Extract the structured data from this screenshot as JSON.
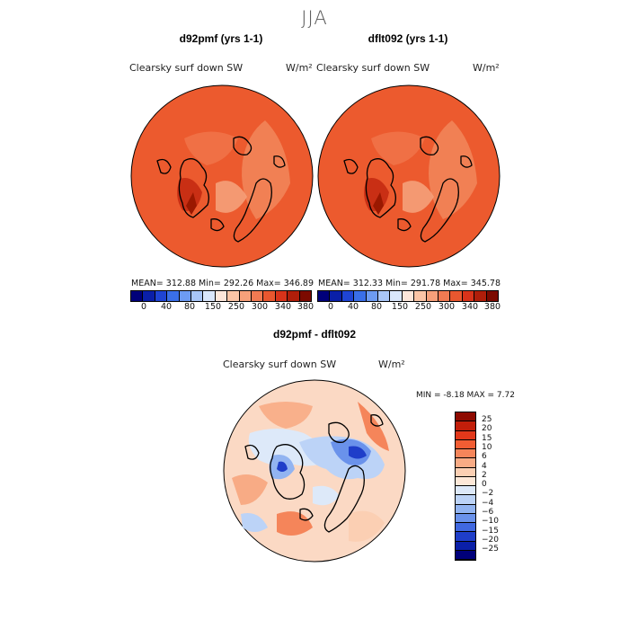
{
  "season": "JJA",
  "panels": [
    {
      "title": "d92pmf (yrs 1-1)",
      "variable": "Clearsky surf down SW",
      "units": "W/m²",
      "stats": "MEAN= 312.88   Min= 292.26   Max= 346.89"
    },
    {
      "title": "dflt092 (yrs 1-1)",
      "variable": "Clearsky surf down SW",
      "units": "W/m²",
      "stats": "MEAN= 312.33   Min= 291.78   Max= 345.78"
    }
  ],
  "abs_colorbar": {
    "labels": [
      "0",
      "40",
      "80",
      "150",
      "250",
      "300",
      "340",
      "380"
    ],
    "colors": [
      "#00007a",
      "#0a1fa8",
      "#1f44d4",
      "#3a6fe8",
      "#6d9bf2",
      "#a9c6f7",
      "#d9e7fb",
      "#fde7da",
      "#fbc5a6",
      "#f6a07a",
      "#f17a52",
      "#e9572f",
      "#d8331a",
      "#b01e0a",
      "#7c0a00"
    ]
  },
  "diff_panel": {
    "title": "d92pmf - dflt092",
    "variable": "Clearsky surf down SW",
    "units": "W/m²",
    "stats": "MIN =   -8.18 MAX =    7.72"
  },
  "diff_colorbar": {
    "labels": [
      "25",
      "20",
      "15",
      "10",
      "6",
      "4",
      "2",
      "0",
      "−2",
      "−4",
      "−6",
      "−10",
      "−15",
      "−20",
      "−25"
    ],
    "colors": [
      "#8e0a00",
      "#c21e0a",
      "#e2381a",
      "#f25d33",
      "#f5855a",
      "#f8ab85",
      "#fbcfb3",
      "#fde8d8",
      "#dde9f9",
      "#bcd3f7",
      "#92b4f1",
      "#6a92eb",
      "#4068e0",
      "#1f3ec9",
      "#0a1fa8",
      "#00007a"
    ]
  },
  "colors": {
    "map_bg": "#ec5a2e",
    "map_light": "#f28a5e",
    "map_dark": "#d8341a",
    "diff_bg": "#fbd9c4"
  }
}
